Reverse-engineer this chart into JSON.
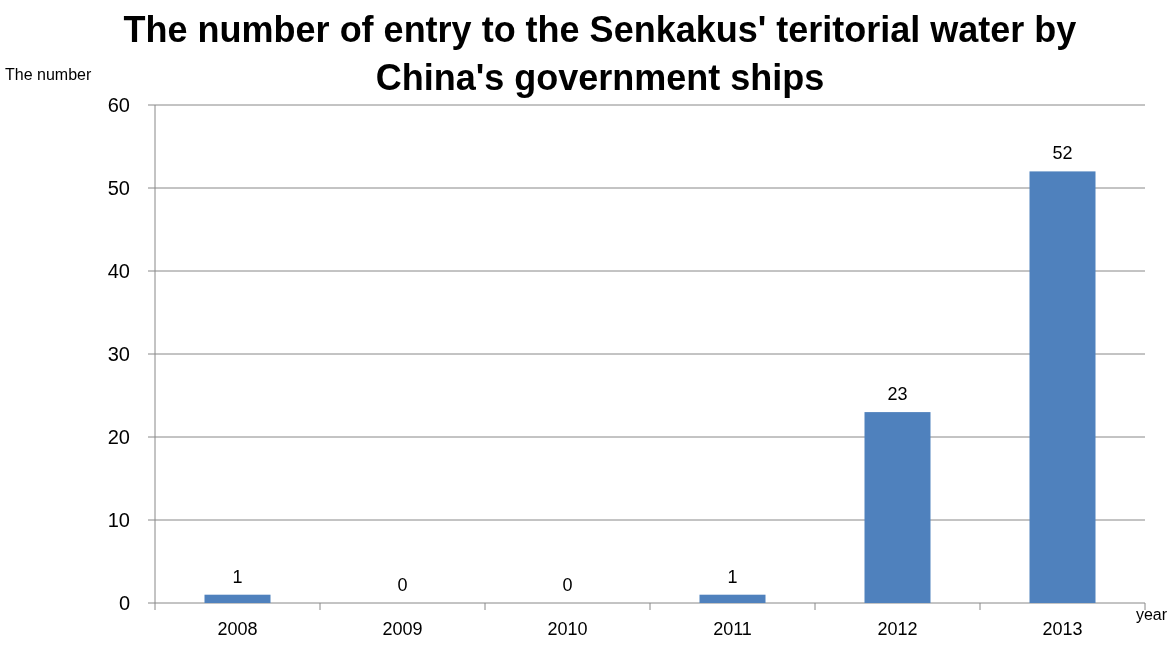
{
  "chart_data": {
    "type": "bar",
    "title": "The number of entry to the Senkakus' teritorial water by China's government ships",
    "ylabel": "The number",
    "xlabel": "year",
    "categories": [
      "2008",
      "2009",
      "2010",
      "2011",
      "2012",
      "2013"
    ],
    "values": [
      1,
      0,
      0,
      1,
      23,
      52
    ],
    "color": "#4f81bd",
    "ylim": [
      0,
      60
    ],
    "yticks": [
      0,
      10,
      20,
      30,
      40,
      50,
      60
    ],
    "grid": "y",
    "data_labels": true
  }
}
